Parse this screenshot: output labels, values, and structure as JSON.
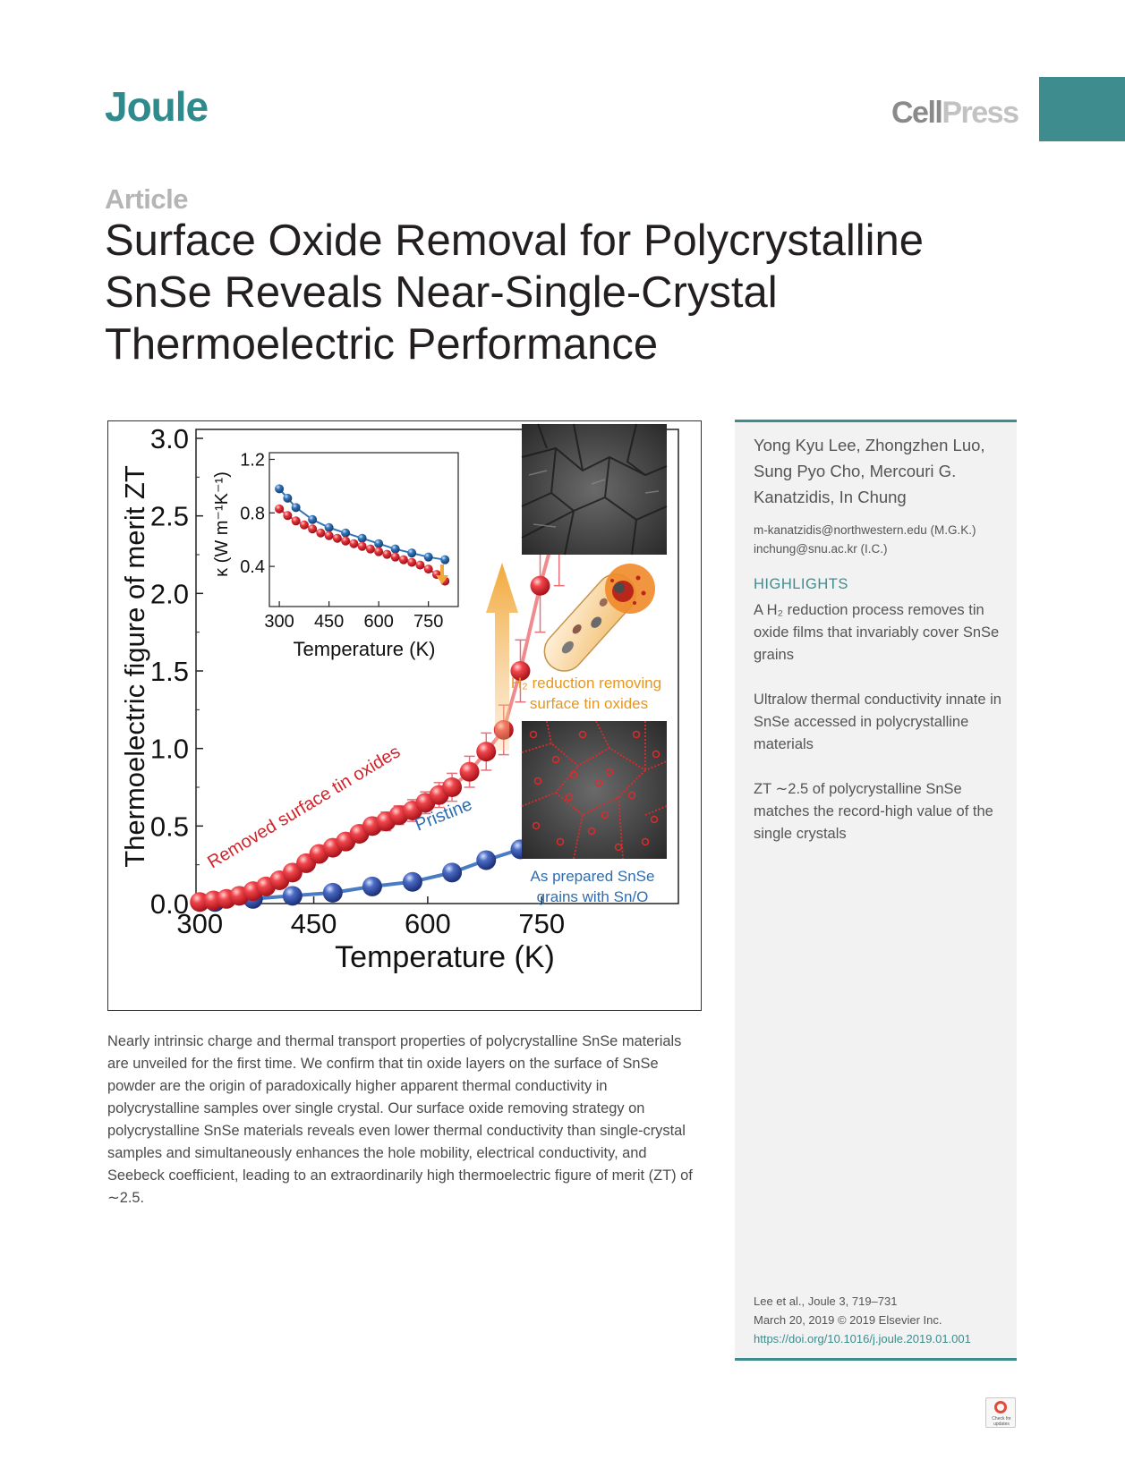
{
  "header": {
    "journal": "Joule",
    "publisher_part1": "Cell",
    "publisher_part2": "Press",
    "article_type": "Article"
  },
  "title_lines": [
    "Surface Oxide Removal for Polycrystalline",
    "SnSe Reveals Near-Single-Crystal",
    "Thermoelectric Performance"
  ],
  "figure": {
    "text": {
      "ylabel": "Thermoelectric figure of merit ZT",
      "xlabel": "Temperature (K)",
      "inset_xlabel": "Temperature (K)",
      "inset_ylabel": "κ (W m⁻¹K⁻¹)",
      "label_removed": "Removed surface tin oxides",
      "label_pristine": "Pristine",
      "label_h2_line1": "H₂ reduction removing",
      "label_h2_line2": "surface tin oxides",
      "label_asprepared_line1": "As prepared  SnSe",
      "label_asprepared_line2": "grains with Sn/O"
    },
    "colors": {
      "red": "#e8343c",
      "blue": "#3a5fb0",
      "inset_blue": "#2f74b8",
      "orange": "#f2a93b",
      "text_red": "#d0232b",
      "text_blue": "#2f6db0",
      "text_orange": "#e8961e"
    }
  },
  "chart_data": [
    {
      "type": "line",
      "ylabel": "Thermoelectric figure of merit ZT",
      "xlabel": "Temperature (K)",
      "xticks": [
        "300",
        "450",
        "600",
        "750"
      ],
      "yticks": [
        "0.0",
        "0.5",
        "1.0",
        "1.5",
        "2.0",
        "2.5",
        "3.0"
      ],
      "xlim": [
        295,
        930
      ],
      "ylim": [
        0,
        3.0
      ],
      "series": [
        {
          "name": "Removed surface tin oxides",
          "x": [
            300,
            318,
            335,
            352,
            370,
            387,
            405,
            422,
            440,
            457,
            475,
            492,
            510,
            527,
            545,
            562,
            580,
            597,
            615,
            632,
            655,
            677,
            700,
            722,
            748,
            773
          ],
          "y": [
            0.01,
            0.02,
            0.03,
            0.05,
            0.08,
            0.11,
            0.15,
            0.2,
            0.26,
            0.32,
            0.36,
            0.4,
            0.45,
            0.5,
            0.53,
            0.57,
            0.6,
            0.65,
            0.7,
            0.75,
            0.85,
            0.98,
            1.12,
            1.5,
            2.05,
            2.5
          ],
          "yerr": [
            0,
            0,
            0,
            0,
            0,
            0,
            0,
            0,
            0,
            0,
            0,
            0,
            0.05,
            0.05,
            0.06,
            0.06,
            0.07,
            0.07,
            0.08,
            0.09,
            0.1,
            0.12,
            0.16,
            0.2,
            0.3,
            0.45
          ]
        },
        {
          "name": "Pristine",
          "x": [
            320,
            370,
            422,
            475,
            527,
            580,
            632,
            677,
            722,
            773
          ],
          "y": [
            0.01,
            0.03,
            0.05,
            0.07,
            0.11,
            0.14,
            0.2,
            0.28,
            0.35,
            0.6
          ]
        }
      ]
    },
    {
      "type": "line",
      "xlabel": "Temperature (K)",
      "ylabel": "κ (W m⁻¹K⁻¹)",
      "xticks": [
        "300",
        "450",
        "600",
        "750"
      ],
      "yticks": [
        "0.4",
        "0.8",
        "1.2"
      ],
      "xlim": [
        270,
        840
      ],
      "ylim": [
        0.1,
        1.25
      ],
      "series": [
        {
          "name": "Pristine",
          "x": [
            300,
            325,
            350,
            400,
            450,
            500,
            550,
            600,
            650,
            700,
            750,
            800
          ],
          "y": [
            0.98,
            0.91,
            0.84,
            0.75,
            0.69,
            0.65,
            0.61,
            0.57,
            0.53,
            0.5,
            0.47,
            0.45
          ]
        },
        {
          "name": "Removed surface tin oxides",
          "x": [
            300,
            325,
            350,
            375,
            400,
            425,
            450,
            475,
            500,
            525,
            550,
            575,
            600,
            625,
            650,
            675,
            700,
            725,
            750,
            775,
            800
          ],
          "y": [
            0.83,
            0.78,
            0.74,
            0.71,
            0.68,
            0.65,
            0.63,
            0.61,
            0.59,
            0.57,
            0.55,
            0.53,
            0.51,
            0.49,
            0.47,
            0.45,
            0.43,
            0.41,
            0.38,
            0.34,
            0.29
          ]
        }
      ]
    }
  ],
  "abstract": "Nearly intrinsic charge and thermal transport properties of polycrystalline SnSe materials are unveiled for the first time. We confirm that tin oxide layers on the surface of SnSe powder are the origin of paradoxically higher apparent thermal conductivity in polycrystalline samples over single crystal. Our surface oxide removing strategy on polycrystalline SnSe materials reveals even lower thermal conductivity than single-crystal samples and simultaneously enhances the hole mobility, electrical conductivity, and Seebeck coefficient, leading to an extraordinarily high thermoelectric figure of merit (ZT) of ∼2.5.",
  "sidebar": {
    "authors": "Yong Kyu Lee, Zhongzhen Luo, Sung Pyo Cho, Mercouri G. Kanatzidis, In Chung",
    "email1": "m-kanatzidis@northwestern.edu (M.G.K.)",
    "email2": "inchung@snu.ac.kr (I.C.)",
    "highlights_heading": "HIGHLIGHTS",
    "highlights": [
      "A H₂ reduction process removes tin oxide films that invariably cover SnSe grains",
      "Ultralow thermal conductivity innate in SnSe accessed in polycrystalline materials",
      "ZT ∼2.5 of polycrystalline SnSe matches the record-high value of the single crystals"
    ],
    "citation_line1": "Lee et al., Joule 3, 719–731",
    "citation_line2": "March 20, 2019 © 2019 Elsevier Inc.",
    "doi": "https://doi.org/10.1016/j.joule.2019.01.001"
  },
  "badge": {
    "text_line1": "Check for",
    "text_line2": "updates"
  }
}
